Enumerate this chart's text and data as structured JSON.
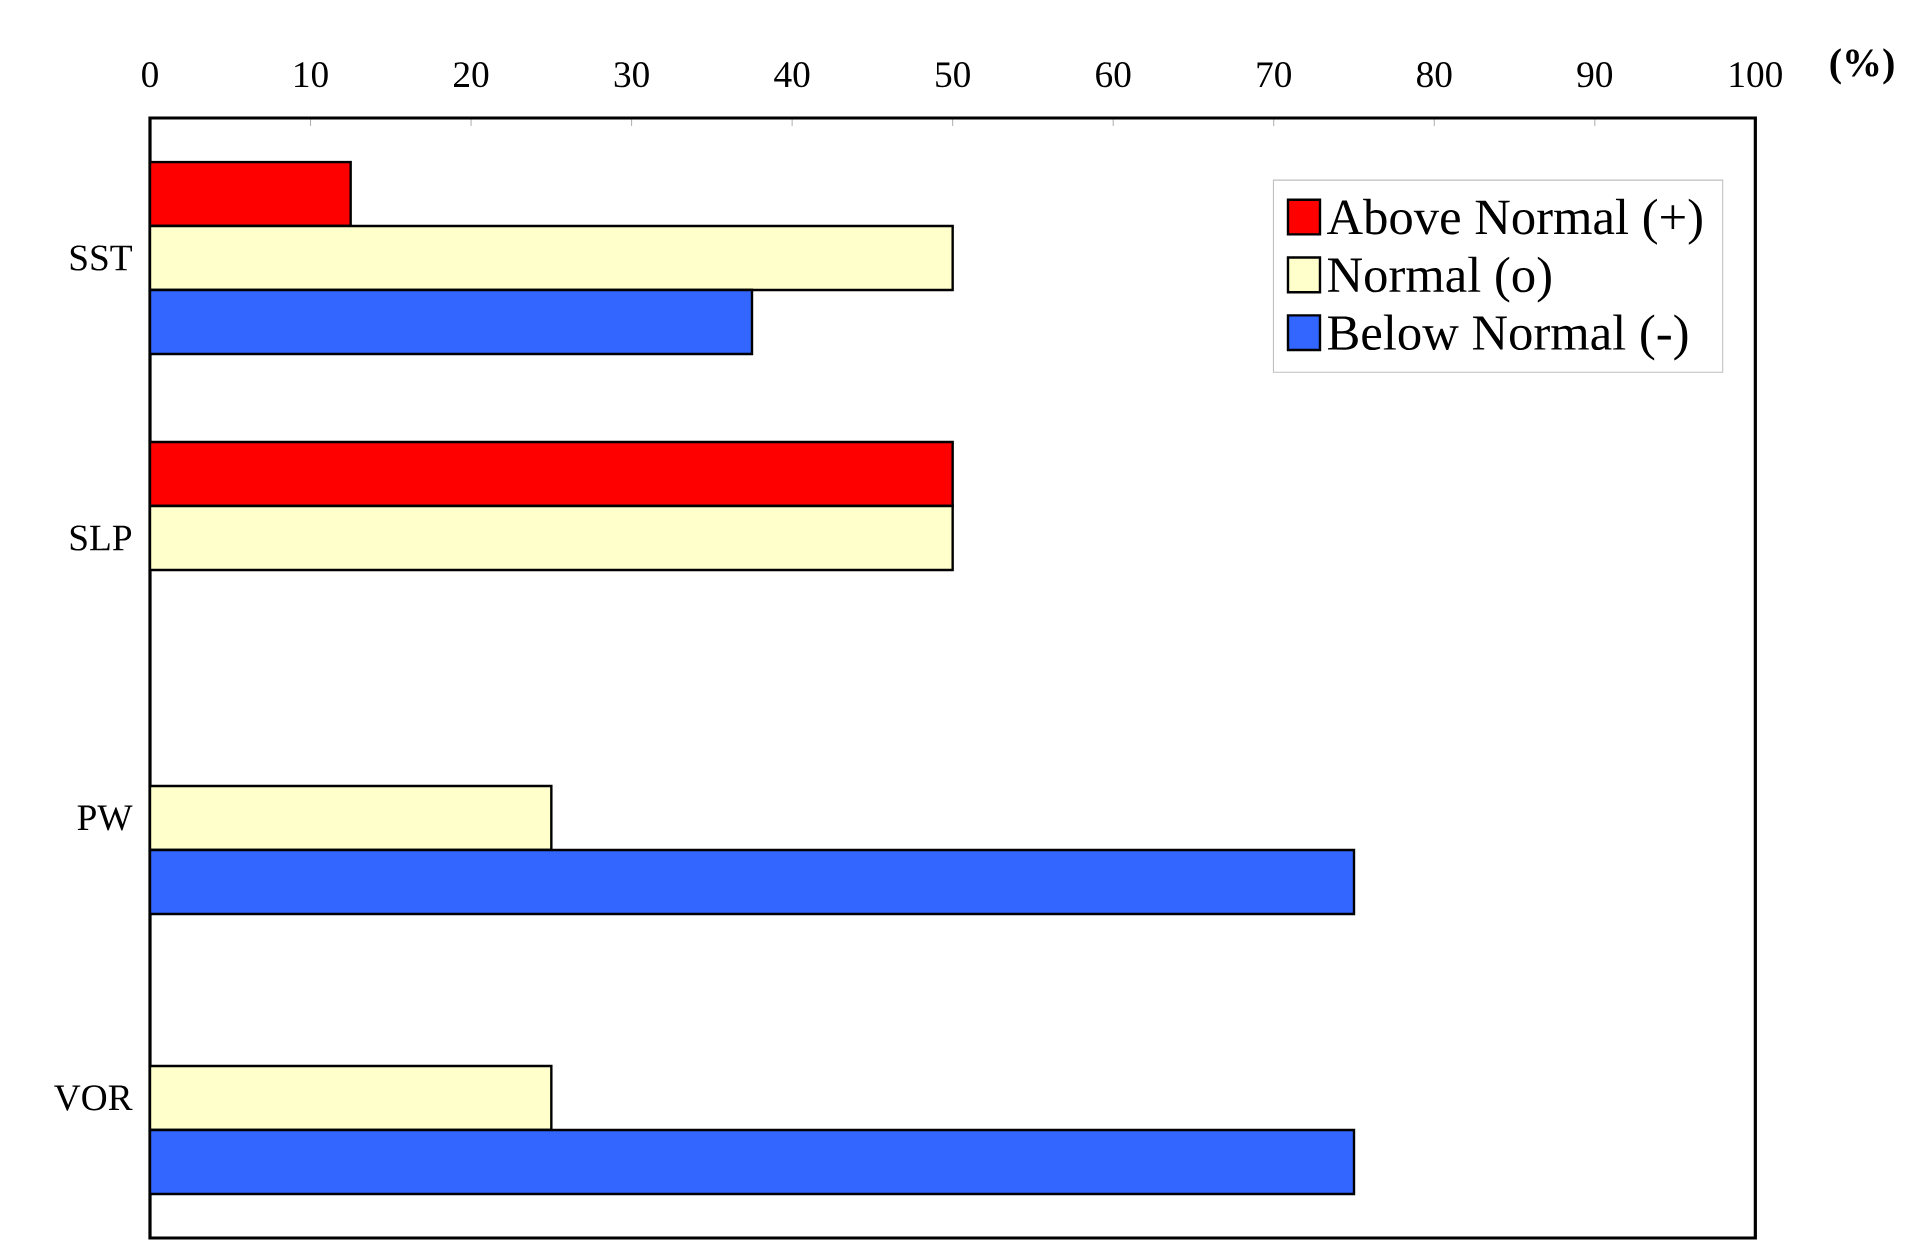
{
  "chart_data": {
    "type": "bar",
    "orientation": "horizontal",
    "xlabel": "(%)",
    "categories": [
      "SST",
      "SLP",
      "PW",
      "VOR"
    ],
    "series": [
      {
        "name": "Above Normal (+)",
        "color": "#ff0000",
        "values": [
          12.5,
          50,
          null,
          null
        ]
      },
      {
        "name": "Normal (o)",
        "color": "#ffffcc",
        "values": [
          50,
          50,
          25,
          25
        ]
      },
      {
        "name": "Below Normal (-)",
        "color": "#3366ff",
        "values": [
          37.5,
          null,
          75,
          75
        ]
      }
    ],
    "xlim": [
      0,
      100
    ],
    "xticks": [
      0,
      10,
      20,
      30,
      40,
      50,
      60,
      70,
      80,
      90,
      100
    ],
    "legend": "top right"
  }
}
